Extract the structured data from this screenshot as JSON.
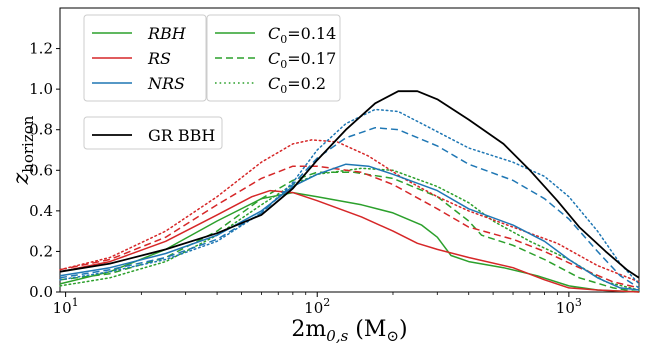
{
  "chart_data": {
    "type": "line",
    "title": "",
    "xlabel": "2m",
    "xlabel_sub": "0,s",
    "xlabel_unit_open": " (M",
    "xlabel_unit_sub": "⊙",
    "xlabel_unit_close": ")",
    "ylabel": "z",
    "ylabel_sub": "horizon",
    "x_scale": "log",
    "xlim": [
      9.5,
      1900
    ],
    "ylim": [
      0.0,
      1.4
    ],
    "x_major_ticks": [
      {
        "value": 10,
        "base": "10",
        "exp": "1"
      },
      {
        "value": 100,
        "base": "10",
        "exp": "2"
      },
      {
        "value": 1000,
        "base": "10",
        "exp": "3"
      }
    ],
    "y_ticks": [
      {
        "value": 0.0,
        "label": "0.0"
      },
      {
        "value": 0.2,
        "label": "0.2"
      },
      {
        "value": 0.4,
        "label": "0.4"
      },
      {
        "value": 0.6,
        "label": "0.6"
      },
      {
        "value": 0.8,
        "label": "0.8"
      },
      {
        "value": 1.0,
        "label": "1.0"
      },
      {
        "value": 1.2,
        "label": "1.2"
      }
    ],
    "grid": false,
    "colors": {
      "RBH": "#2ca02c",
      "RS": "#d62728",
      "NRS": "#1f77b4",
      "GR": "#000000"
    },
    "legends": [
      {
        "placement": "top-left",
        "entries": [
          {
            "label": "RBH",
            "color": "#2ca02c",
            "style": "solid",
            "italic": true
          },
          {
            "label": "RS",
            "color": "#d62728",
            "style": "solid",
            "italic": true
          },
          {
            "label": "NRS",
            "color": "#1f77b4",
            "style": "solid",
            "italic": true
          }
        ]
      },
      {
        "placement": "top-left",
        "entries": [
          {
            "label": "C",
            "sub": "0",
            "value": "=0.14",
            "color": "#2ca02c",
            "style": "solid"
          },
          {
            "label": "C",
            "sub": "0",
            "value": "=0.17",
            "color": "#2ca02c",
            "style": "dashed"
          },
          {
            "label": "C",
            "sub": "0",
            "value": "=0.2",
            "color": "#2ca02c",
            "style": "dotted"
          }
        ]
      },
      {
        "placement": "left",
        "entries": [
          {
            "label": "GR BBH",
            "color": "#000000",
            "style": "solid"
          }
        ]
      }
    ],
    "series": [
      {
        "model": "RBH",
        "C0": 0.14,
        "color": "#2ca02c",
        "style": "solid",
        "points": [
          [
            9.5,
            0.04
          ],
          [
            15,
            0.1
          ],
          [
            25,
            0.21
          ],
          [
            40,
            0.35
          ],
          [
            60,
            0.46
          ],
          [
            80,
            0.49
          ],
          [
            100,
            0.47
          ],
          [
            150,
            0.43
          ],
          [
            200,
            0.39
          ],
          [
            260,
            0.33
          ],
          [
            300,
            0.27
          ],
          [
            340,
            0.18
          ],
          [
            400,
            0.15
          ],
          [
            550,
            0.12
          ],
          [
            750,
            0.08
          ],
          [
            1000,
            0.03
          ],
          [
            1300,
            0.01
          ],
          [
            1900,
            0.0
          ]
        ]
      },
      {
        "model": "RBH",
        "C0": 0.17,
        "color": "#2ca02c",
        "style": "dashed",
        "points": [
          [
            9.5,
            0.06
          ],
          [
            15,
            0.09
          ],
          [
            25,
            0.17
          ],
          [
            40,
            0.3
          ],
          [
            60,
            0.46
          ],
          [
            80,
            0.55
          ],
          [
            100,
            0.59
          ],
          [
            140,
            0.59
          ],
          [
            200,
            0.56
          ],
          [
            300,
            0.47
          ],
          [
            400,
            0.35
          ],
          [
            450,
            0.28
          ],
          [
            600,
            0.23
          ],
          [
            800,
            0.16
          ],
          [
            1100,
            0.07
          ],
          [
            1500,
            0.02
          ],
          [
            1900,
            0.0
          ]
        ]
      },
      {
        "model": "RBH",
        "C0": 0.2,
        "color": "#2ca02c",
        "style": "dotted",
        "points": [
          [
            9.5,
            0.03
          ],
          [
            15,
            0.07
          ],
          [
            25,
            0.15
          ],
          [
            40,
            0.28
          ],
          [
            60,
            0.43
          ],
          [
            80,
            0.53
          ],
          [
            100,
            0.58
          ],
          [
            150,
            0.61
          ],
          [
            200,
            0.6
          ],
          [
            300,
            0.52
          ],
          [
            400,
            0.44
          ],
          [
            500,
            0.35
          ],
          [
            700,
            0.25
          ],
          [
            1000,
            0.16
          ],
          [
            1400,
            0.05
          ],
          [
            1900,
            0.01
          ]
        ]
      },
      {
        "model": "RS",
        "C0": 0.14,
        "color": "#d62728",
        "style": "solid",
        "points": [
          [
            9.5,
            0.1
          ],
          [
            15,
            0.15
          ],
          [
            25,
            0.25
          ],
          [
            40,
            0.38
          ],
          [
            55,
            0.47
          ],
          [
            65,
            0.5
          ],
          [
            80,
            0.49
          ],
          [
            100,
            0.45
          ],
          [
            150,
            0.37
          ],
          [
            200,
            0.3
          ],
          [
            250,
            0.24
          ],
          [
            300,
            0.21
          ],
          [
            400,
            0.17
          ],
          [
            600,
            0.12
          ],
          [
            800,
            0.06
          ],
          [
            1000,
            0.02
          ],
          [
            1300,
            0.01
          ],
          [
            1900,
            0.0
          ]
        ]
      },
      {
        "model": "RS",
        "C0": 0.17,
        "color": "#d62728",
        "style": "dashed",
        "points": [
          [
            9.5,
            0.11
          ],
          [
            15,
            0.16
          ],
          [
            25,
            0.27
          ],
          [
            40,
            0.43
          ],
          [
            60,
            0.56
          ],
          [
            80,
            0.62
          ],
          [
            100,
            0.62
          ],
          [
            150,
            0.59
          ],
          [
            200,
            0.53
          ],
          [
            300,
            0.41
          ],
          [
            400,
            0.32
          ],
          [
            600,
            0.26
          ],
          [
            800,
            0.2
          ],
          [
            1100,
            0.12
          ],
          [
            1500,
            0.05
          ],
          [
            1900,
            0.02
          ]
        ]
      },
      {
        "model": "RS",
        "C0": 0.2,
        "color": "#d62728",
        "style": "dotted",
        "points": [
          [
            9.5,
            0.11
          ],
          [
            15,
            0.17
          ],
          [
            25,
            0.3
          ],
          [
            40,
            0.47
          ],
          [
            60,
            0.64
          ],
          [
            80,
            0.73
          ],
          [
            95,
            0.75
          ],
          [
            120,
            0.74
          ],
          [
            160,
            0.67
          ],
          [
            220,
            0.56
          ],
          [
            300,
            0.47
          ],
          [
            400,
            0.4
          ],
          [
            600,
            0.32
          ],
          [
            900,
            0.24
          ],
          [
            1300,
            0.13
          ],
          [
            1900,
            0.05
          ]
        ]
      },
      {
        "model": "NRS",
        "C0": 0.14,
        "color": "#1f77b4",
        "style": "solid",
        "points": [
          [
            9.5,
            0.08
          ],
          [
            15,
            0.12
          ],
          [
            25,
            0.19
          ],
          [
            40,
            0.28
          ],
          [
            60,
            0.4
          ],
          [
            80,
            0.52
          ],
          [
            100,
            0.58
          ],
          [
            130,
            0.63
          ],
          [
            160,
            0.62
          ],
          [
            200,
            0.58
          ],
          [
            300,
            0.5
          ],
          [
            400,
            0.41
          ],
          [
            600,
            0.33
          ],
          [
            800,
            0.25
          ],
          [
            1000,
            0.16
          ],
          [
            1300,
            0.07
          ],
          [
            1600,
            0.02
          ],
          [
            1900,
            0.01
          ]
        ]
      },
      {
        "model": "NRS",
        "C0": 0.17,
        "color": "#1f77b4",
        "style": "dashed",
        "points": [
          [
            9.5,
            0.07
          ],
          [
            15,
            0.11
          ],
          [
            25,
            0.17
          ],
          [
            40,
            0.26
          ],
          [
            60,
            0.39
          ],
          [
            80,
            0.53
          ],
          [
            100,
            0.66
          ],
          [
            130,
            0.76
          ],
          [
            170,
            0.81
          ],
          [
            210,
            0.8
          ],
          [
            300,
            0.72
          ],
          [
            400,
            0.63
          ],
          [
            600,
            0.55
          ],
          [
            800,
            0.46
          ],
          [
            1000,
            0.36
          ],
          [
            1300,
            0.2
          ],
          [
            1600,
            0.08
          ],
          [
            1900,
            0.02
          ]
        ]
      },
      {
        "model": "NRS",
        "C0": 0.2,
        "color": "#1f77b4",
        "style": "dotted",
        "points": [
          [
            9.5,
            0.06
          ],
          [
            15,
            0.1
          ],
          [
            25,
            0.16
          ],
          [
            40,
            0.25
          ],
          [
            60,
            0.39
          ],
          [
            80,
            0.54
          ],
          [
            100,
            0.7
          ],
          [
            130,
            0.83
          ],
          [
            170,
            0.9
          ],
          [
            210,
            0.89
          ],
          [
            300,
            0.79
          ],
          [
            400,
            0.71
          ],
          [
            600,
            0.64
          ],
          [
            800,
            0.57
          ],
          [
            1000,
            0.47
          ],
          [
            1300,
            0.3
          ],
          [
            1600,
            0.14
          ],
          [
            1900,
            0.04
          ]
        ]
      },
      {
        "model": "GR BBH",
        "color": "#000000",
        "style": "solid",
        "points": [
          [
            9.5,
            0.1
          ],
          [
            15,
            0.14
          ],
          [
            25,
            0.21
          ],
          [
            40,
            0.29
          ],
          [
            60,
            0.38
          ],
          [
            80,
            0.51
          ],
          [
            100,
            0.65
          ],
          [
            130,
            0.8
          ],
          [
            170,
            0.93
          ],
          [
            210,
            0.99
          ],
          [
            250,
            0.99
          ],
          [
            300,
            0.95
          ],
          [
            400,
            0.85
          ],
          [
            550,
            0.73
          ],
          [
            700,
            0.6
          ],
          [
            900,
            0.45
          ],
          [
            1100,
            0.32
          ],
          [
            1400,
            0.2
          ],
          [
            1700,
            0.11
          ],
          [
            1900,
            0.07
          ]
        ]
      }
    ]
  }
}
